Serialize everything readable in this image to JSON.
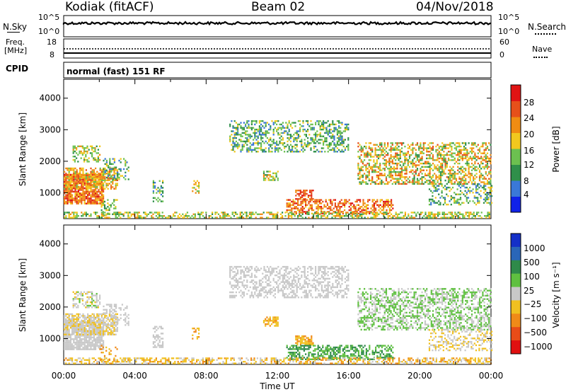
{
  "header": {
    "station": "Kodiak (fitACF)",
    "beam": "Beam 02",
    "date": "04/Nov/2018"
  },
  "noise_panel": {
    "left_label": "N.Sky",
    "right_label": "N.Search",
    "left_ticks": [
      "10^5",
      "10^0"
    ],
    "right_ticks": [
      "10^5",
      "10^0"
    ]
  },
  "freq_panel": {
    "left_label_1": "Freq.",
    "left_label_2": "[MHz]",
    "right_label": "Nave",
    "left_ticks": [
      "18",
      "8"
    ],
    "right_ticks": [
      "60",
      "0"
    ]
  },
  "cpid_panel": {
    "label": "CPID",
    "text": "normal (fast) 151 RF"
  },
  "chart_data": [
    {
      "type": "heatmap",
      "name": "power-panel",
      "ylabel": "Slant Range [km]",
      "ylim": [
        180,
        4600
      ],
      "yticks": [
        1000,
        2000,
        3000,
        4000
      ],
      "xlim_hours": [
        0,
        24
      ],
      "colorbar": {
        "label": "Power [dB]",
        "ticks": [
          "4",
          "8",
          "12",
          "16",
          "20",
          "24",
          "28"
        ],
        "colors": [
          "#1022e8",
          "#3a78d8",
          "#2f8f4a",
          "#6cc050",
          "#f2c81e",
          "#f08c12",
          "#e6501a",
          "#e01414"
        ]
      }
    },
    {
      "type": "heatmap",
      "name": "velocity-panel",
      "ylabel": "Slant Range [km]",
      "ylim": [
        180,
        4600
      ],
      "yticks": [
        1000,
        2000,
        3000,
        4000
      ],
      "xlim_hours": [
        0,
        24
      ],
      "xlabel": "Time UT",
      "xticks": [
        "00:00",
        "04:00",
        "08:00",
        "12:00",
        "16:00",
        "20:00",
        "00:00"
      ],
      "colorbar": {
        "label": "Velocity [m s⁻¹]",
        "ticks": [
          "1000",
          "500",
          "100",
          "25",
          "−25",
          "−100",
          "−500",
          "−1000"
        ],
        "colors": [
          "#1430c8",
          "#2a66b8",
          "#2f8a4a",
          "#5fc040",
          "#c8c8c8",
          "#f0c020",
          "#f08a18",
          "#e84c18",
          "#e01010"
        ]
      }
    }
  ]
}
